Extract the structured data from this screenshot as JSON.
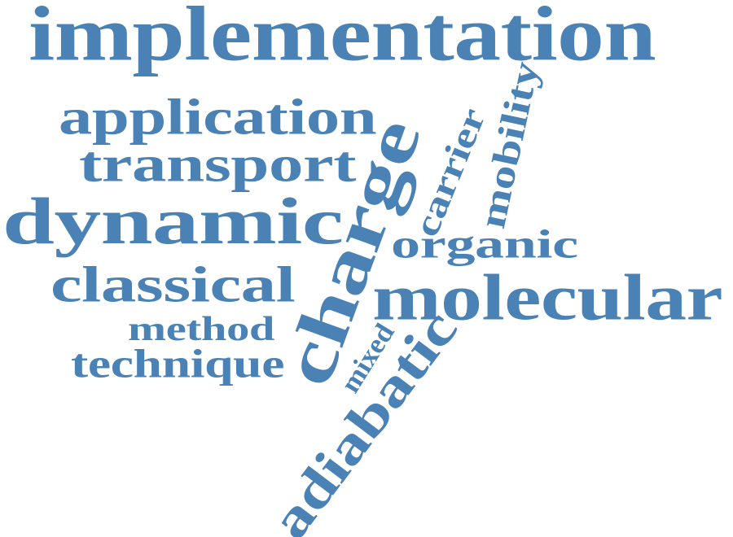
{
  "word_color": "#4a82b6",
  "background_color": "#ffffff",
  "words": [
    {
      "key": "implementation",
      "text": "implementation"
    },
    {
      "key": "application",
      "text": "application"
    },
    {
      "key": "transport",
      "text": "transport"
    },
    {
      "key": "dynamic",
      "text": "dynamic"
    },
    {
      "key": "classical",
      "text": "classical"
    },
    {
      "key": "method",
      "text": "method"
    },
    {
      "key": "technique",
      "text": "technique"
    },
    {
      "key": "charge",
      "text": "charge"
    },
    {
      "key": "carrier",
      "text": "carrier"
    },
    {
      "key": "mobility",
      "text": "mobility"
    },
    {
      "key": "organic",
      "text": "organic"
    },
    {
      "key": "molecular",
      "text": "molecular"
    },
    {
      "key": "mixed",
      "text": "mixed"
    },
    {
      "key": "adiabatic",
      "text": "adiabatic"
    }
  ]
}
